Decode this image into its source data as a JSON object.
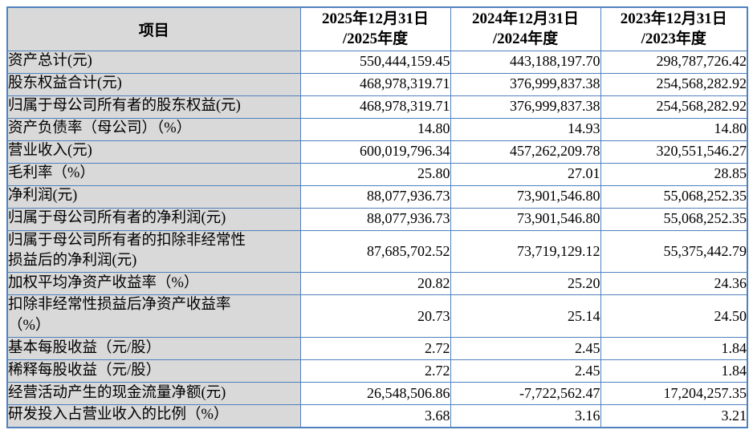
{
  "colors": {
    "border": "#4f81bd",
    "label_bg": "#d9d9d9",
    "text": "#000000",
    "page_bg": "#ffffff"
  },
  "table": {
    "header": {
      "item": "项目",
      "periods": [
        {
          "line1": "2025年12月31日",
          "line2": "/2025年度"
        },
        {
          "line1": "2024年12月31日",
          "line2": "/2024年度"
        },
        {
          "line1": "2023年12月31日",
          "line2": "/2023年度"
        }
      ]
    },
    "rows": [
      {
        "label": "资产总计(元)",
        "values": [
          "550,444,159.45",
          "443,188,197.70",
          "298,787,726.42"
        ]
      },
      {
        "label": "股东权益合计(元)",
        "values": [
          "468,978,319.71",
          "376,999,837.38",
          "254,568,282.92"
        ]
      },
      {
        "label": "归属于母公司所有者的股东权益(元)",
        "values": [
          "468,978,319.71",
          "376,999,837.38",
          "254,568,282.92"
        ]
      },
      {
        "label": "资产负债率（母公司）（%）",
        "values": [
          "14.80",
          "14.93",
          "14.80"
        ]
      },
      {
        "label": "营业收入(元)",
        "values": [
          "600,019,796.34",
          "457,262,209.78",
          "320,551,546.27"
        ]
      },
      {
        "label": "毛利率（%）",
        "values": [
          "25.80",
          "27.01",
          "28.85"
        ]
      },
      {
        "label": "净利润(元)",
        "values": [
          "88,077,936.73",
          "73,901,546.80",
          "55,068,252.35"
        ]
      },
      {
        "label": "归属于母公司所有者的净利润(元)",
        "values": [
          "88,077,936.73",
          "73,901,546.80",
          "55,068,252.35"
        ]
      },
      {
        "label": "归属于母公司所有者的扣除非经常性\n损益后的净利润(元)",
        "values": [
          "87,685,702.52",
          "73,719,129.12",
          "55,375,442.79"
        ]
      },
      {
        "label": "加权平均净资产收益率（%）",
        "values": [
          "20.82",
          "25.20",
          "24.36"
        ]
      },
      {
        "label": "扣除非经常性损益后净资产收益率\n（%）",
        "values": [
          "20.73",
          "25.14",
          "24.50"
        ]
      },
      {
        "label": "基本每股收益（元/股）",
        "values": [
          "2.72",
          "2.45",
          "1.84"
        ]
      },
      {
        "label": "稀释每股收益（元/股）",
        "values": [
          "2.72",
          "2.45",
          "1.84"
        ]
      },
      {
        "label": "经营活动产生的现金流量净额(元)",
        "values": [
          "26,548,506.86",
          "-7,722,562.47",
          "17,204,257.35"
        ]
      },
      {
        "label": "研发投入占营业收入的比例（%）",
        "values": [
          "3.68",
          "3.16",
          "3.21"
        ]
      }
    ]
  }
}
